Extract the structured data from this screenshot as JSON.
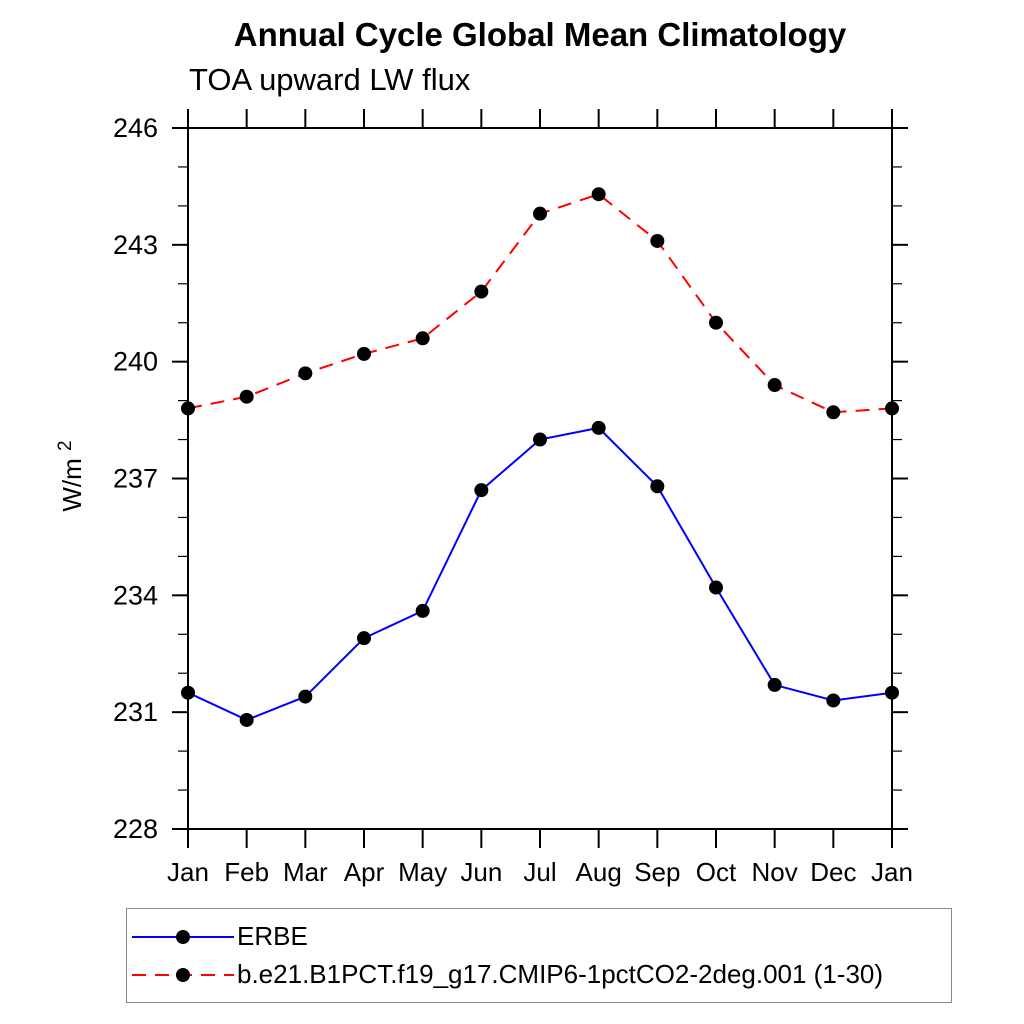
{
  "chart_data": {
    "type": "line",
    "title": "Annual Cycle Global Mean Climatology",
    "subtitle": "TOA upward LW flux",
    "xlabel": "",
    "ylabel": "W/m²",
    "ylabel_base": "W/m",
    "ylabel_sup": "2",
    "categories": [
      "Jan",
      "Feb",
      "Mar",
      "Apr",
      "May",
      "Jun",
      "Jul",
      "Aug",
      "Sep",
      "Oct",
      "Nov",
      "Dec",
      "Jan"
    ],
    "ylim": [
      228,
      246
    ],
    "yticks": [
      228,
      231,
      234,
      237,
      240,
      243,
      246
    ],
    "ytick_labels": [
      "228",
      "231",
      "234",
      "237",
      "240",
      "243",
      "246"
    ],
    "yminor_step": 1,
    "grid": false,
    "legend_position": "bottom",
    "marker": "filled-circle",
    "marker_color": "#000000",
    "series": [
      {
        "name": "ERBE",
        "color": "#0000ff",
        "line_style": "solid",
        "values": [
          231.5,
          230.8,
          231.4,
          232.9,
          233.6,
          236.7,
          238.0,
          238.3,
          236.8,
          234.2,
          231.7,
          231.3,
          231.5
        ]
      },
      {
        "name": "b.e21.B1PCT.f19_g17.CMIP6-1pctCO2-2deg.001 (1-30)",
        "color": "#ff0000",
        "line_style": "dashed",
        "values": [
          238.8,
          239.1,
          239.7,
          240.2,
          240.6,
          241.8,
          243.8,
          244.3,
          243.1,
          241.0,
          239.4,
          238.7,
          238.8
        ]
      }
    ]
  }
}
